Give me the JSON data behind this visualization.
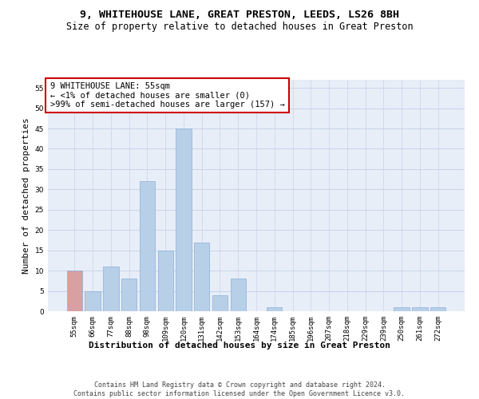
{
  "title1": "9, WHITEHOUSE LANE, GREAT PRESTON, LEEDS, LS26 8BH",
  "title2": "Size of property relative to detached houses in Great Preston",
  "xlabel": "Distribution of detached houses by size in Great Preston",
  "ylabel": "Number of detached properties",
  "categories": [
    "55sqm",
    "66sqm",
    "77sqm",
    "88sqm",
    "98sqm",
    "109sqm",
    "120sqm",
    "131sqm",
    "142sqm",
    "153sqm",
    "164sqm",
    "174sqm",
    "185sqm",
    "196sqm",
    "207sqm",
    "218sqm",
    "229sqm",
    "239sqm",
    "250sqm",
    "261sqm",
    "272sqm"
  ],
  "values": [
    10,
    5,
    11,
    8,
    32,
    15,
    45,
    17,
    4,
    8,
    0,
    1,
    0,
    0,
    0,
    0,
    0,
    0,
    1,
    1,
    1
  ],
  "bar_color": "#b8cfe8",
  "bar_edge_color": "#8ab0d8",
  "annotation_box_color": "#cc0000",
  "annotation_text": "9 WHITEHOUSE LANE: 55sqm\n← <1% of detached houses are smaller (0)\n>99% of semi-detached houses are larger (157) →",
  "highlight_bar_index": 0,
  "highlight_bar_color": "#d8a0a0",
  "ylim": [
    0,
    57
  ],
  "yticks": [
    0,
    5,
    10,
    15,
    20,
    25,
    30,
    35,
    40,
    45,
    50,
    55
  ],
  "grid_color": "#c8d4e8",
  "background_color": "#e8eef8",
  "footer": "Contains HM Land Registry data © Crown copyright and database right 2024.\nContains public sector information licensed under the Open Government Licence v3.0.",
  "title1_fontsize": 9.5,
  "title2_fontsize": 8.5,
  "annotation_fontsize": 7.5,
  "tick_fontsize": 6.5,
  "ylabel_fontsize": 8,
  "xlabel_fontsize": 8,
  "footer_fontsize": 6.0
}
